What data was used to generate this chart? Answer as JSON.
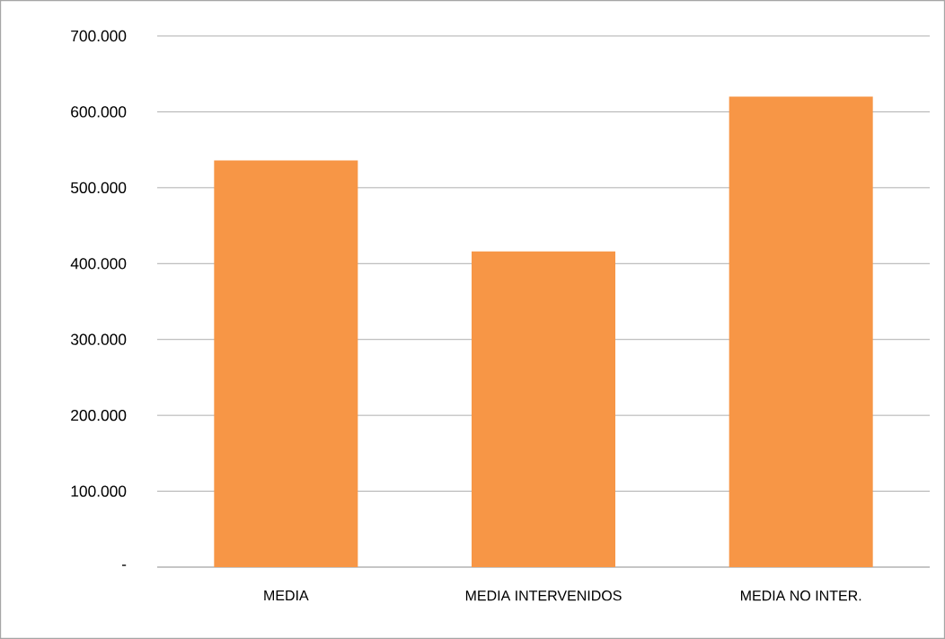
{
  "chart_data": {
    "type": "bar",
    "categories": [
      "MEDIA",
      "MEDIA INTERVENIDOS",
      "MEDIA NO INTER."
    ],
    "values": [
      536000,
      416000,
      620000
    ],
    "color": "#f79646",
    "ylim": [
      0,
      700000
    ],
    "yticks": [
      {
        "value": 0,
        "label": "-"
      },
      {
        "value": 100000,
        "label": "100.000"
      },
      {
        "value": 200000,
        "label": "200.000"
      },
      {
        "value": 300000,
        "label": "300.000"
      },
      {
        "value": 400000,
        "label": "400.000"
      },
      {
        "value": 500000,
        "label": "500.000"
      },
      {
        "value": 600000,
        "label": "600.000"
      },
      {
        "value": 700000,
        "label": "700.000"
      }
    ],
    "grid": "y"
  }
}
